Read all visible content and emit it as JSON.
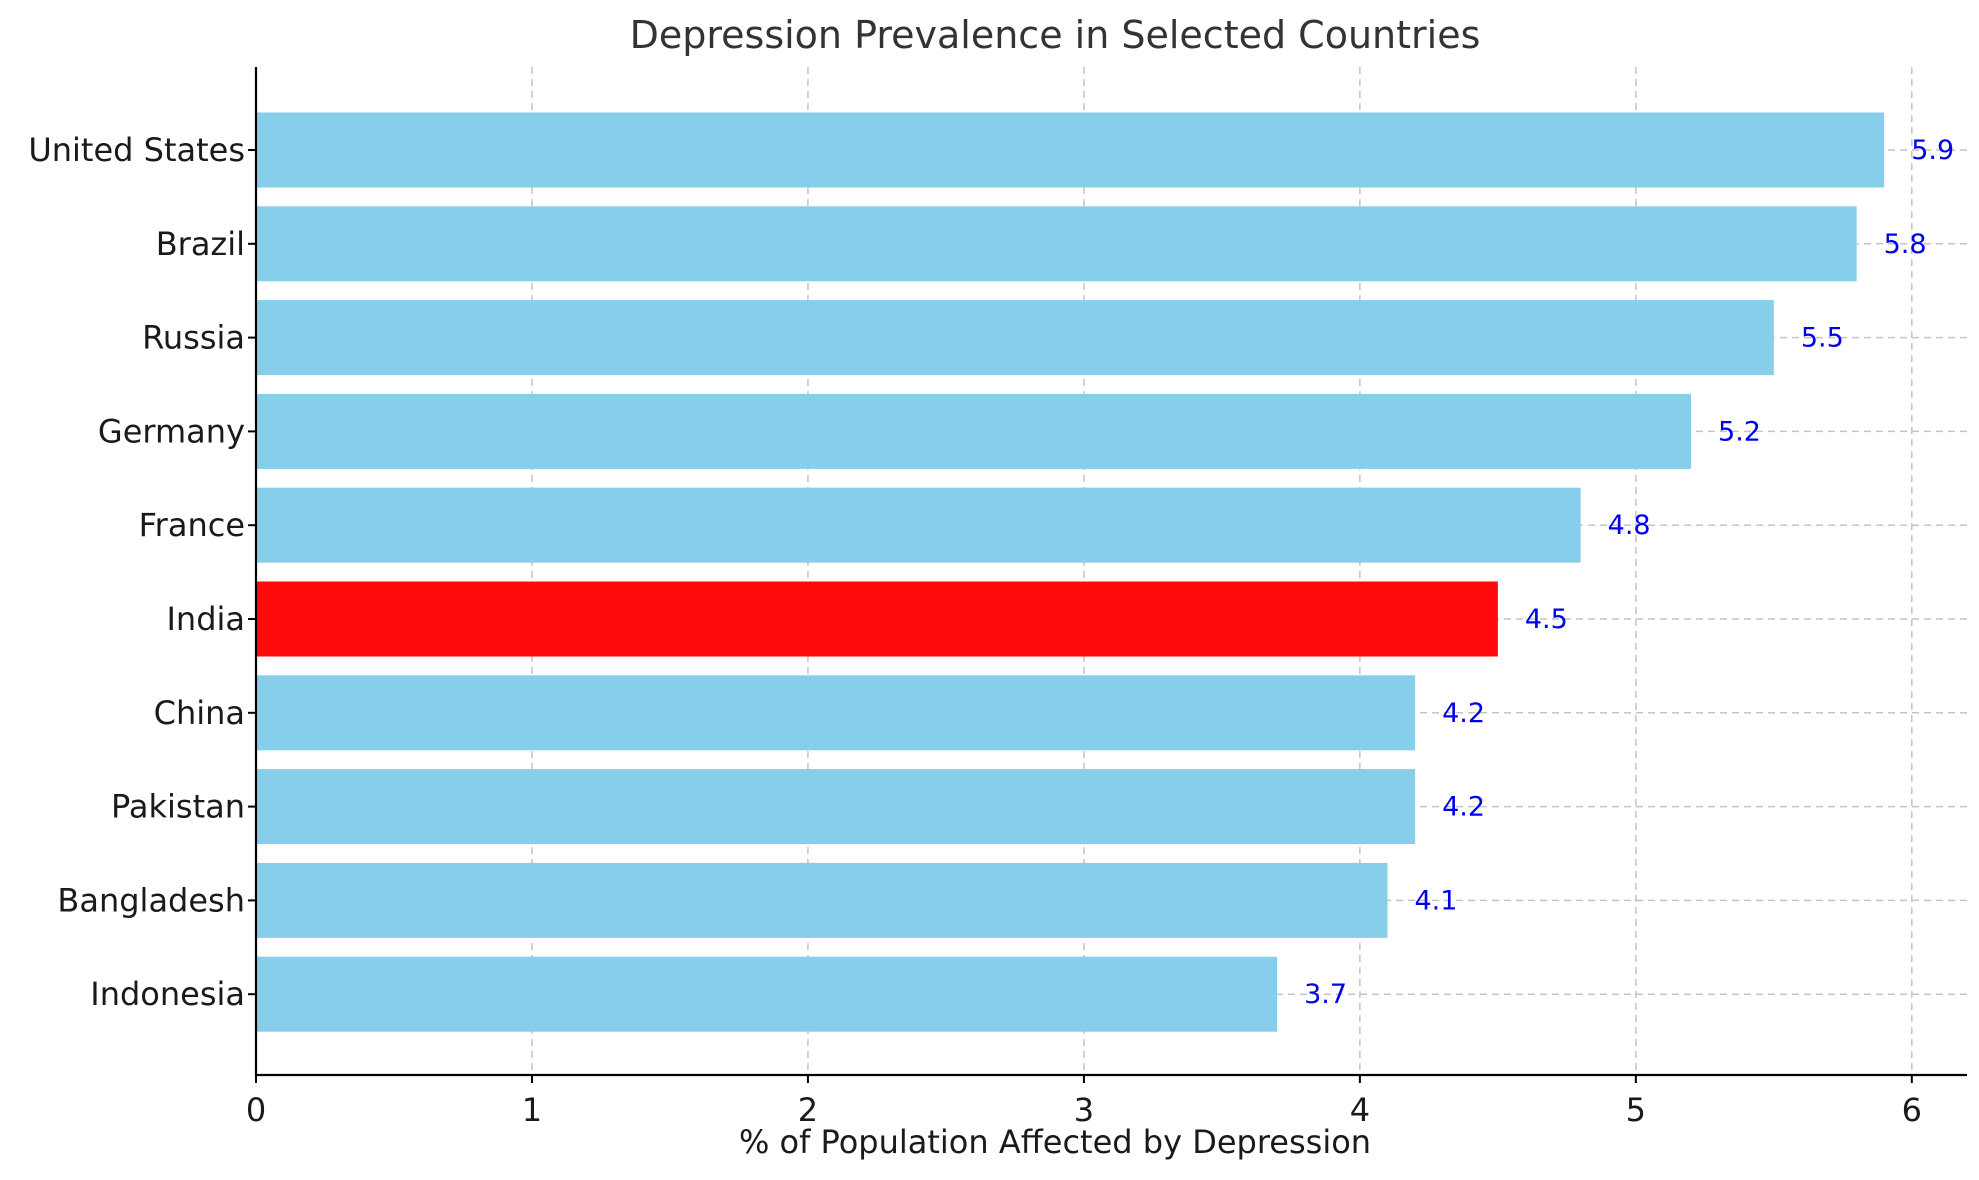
{
  "chart_data": {
    "type": "bar",
    "orientation": "horizontal",
    "title": "Depression Prevalence in Selected Countries",
    "xlabel": "% of Population Affected by Depression",
    "ylabel": "",
    "xlim": [
      0,
      6.2
    ],
    "xticks": [
      0,
      1,
      2,
      3,
      4,
      5,
      6
    ],
    "categories": [
      "United States",
      "Brazil",
      "Russia",
      "Germany",
      "France",
      "India",
      "China",
      "Pakistan",
      "Bangladesh",
      "Indonesia"
    ],
    "values": [
      5.9,
      5.8,
      5.5,
      5.2,
      4.8,
      4.5,
      4.2,
      4.2,
      4.1,
      3.7
    ],
    "value_labels": [
      "5.9",
      "5.8",
      "5.5",
      "5.2",
      "4.8",
      "4.5",
      "4.2",
      "4.2",
      "4.1",
      "3.7"
    ],
    "highlight": "India",
    "colors": {
      "bar": "#87CEEB",
      "highlight_bar": "#FF0A0A",
      "value_label": "#0000EE",
      "grid": "#c4c4c4"
    },
    "grid": true,
    "grid_style": "dashed"
  }
}
